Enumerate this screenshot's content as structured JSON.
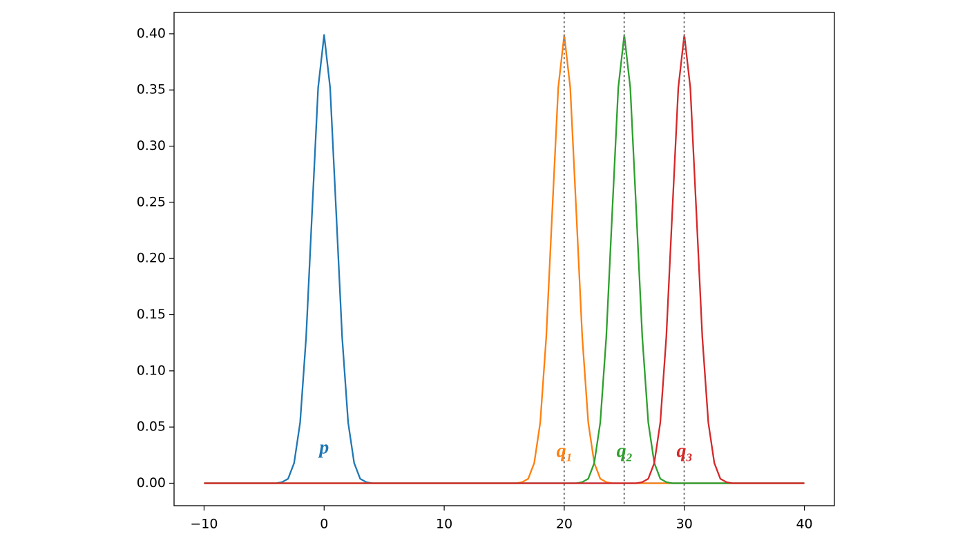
{
  "chart_data": {
    "type": "line",
    "x": [
      -10,
      -9.5,
      -9,
      -8.5,
      -8,
      -7.5,
      -7,
      -6.5,
      -6,
      -5.5,
      -5,
      -4.5,
      -4,
      -3.5,
      -3,
      -2.5,
      -2,
      -1.5,
      -1,
      -0.5,
      0,
      0.5,
      1,
      1.5,
      2,
      2.5,
      3,
      3.5,
      4,
      4.5,
      5,
      5.5,
      6,
      6.5,
      7,
      7.5,
      8,
      8.5,
      9,
      9.5,
      10,
      10.5,
      11,
      11.5,
      12,
      12.5,
      13,
      13.5,
      14,
      14.5,
      15,
      15.5,
      16,
      16.5,
      17,
      17.5,
      18,
      18.5,
      19,
      19.5,
      20,
      20.5,
      21,
      21.5,
      22,
      22.5,
      23,
      23.5,
      24,
      24.5,
      25,
      25.5,
      26,
      26.5,
      27,
      27.5,
      28,
      28.5,
      29,
      29.5,
      30,
      30.5,
      31,
      31.5,
      32,
      32.5,
      33,
      33.5,
      34,
      34.5,
      35,
      35.5,
      36,
      36.5,
      37,
      37.5,
      38,
      38.5,
      39,
      39.5,
      40
    ],
    "series": [
      {
        "color": "#1f77b4",
        "values": [
          0,
          0,
          0,
          0,
          0,
          0,
          0,
          0,
          0,
          0,
          0,
          0,
          0,
          0.001,
          0.004,
          0.018,
          0.054,
          0.13,
          0.242,
          0.352,
          0.399,
          0.352,
          0.242,
          0.13,
          0.054,
          0.018,
          0.004,
          0.001,
          0,
          0,
          0,
          0,
          0,
          0,
          0,
          0,
          0,
          0,
          0,
          0,
          0,
          0,
          0,
          0,
          0,
          0,
          0,
          0,
          0,
          0,
          0,
          0,
          0,
          0,
          0,
          0,
          0,
          0,
          0,
          0,
          0,
          0,
          0,
          0,
          0,
          0,
          0,
          0,
          0,
          0,
          0,
          0,
          0,
          0,
          0,
          0,
          0,
          0,
          0,
          0,
          0,
          0,
          0,
          0,
          0,
          0,
          0,
          0,
          0,
          0,
          0,
          0,
          0,
          0,
          0,
          0,
          0,
          0,
          0,
          0,
          0
        ]
      },
      {
        "color": "#ff7f0e",
        "values": [
          0,
          0,
          0,
          0,
          0,
          0,
          0,
          0,
          0,
          0,
          0,
          0,
          0,
          0,
          0,
          0,
          0,
          0,
          0,
          0,
          0,
          0,
          0,
          0,
          0,
          0,
          0,
          0,
          0,
          0,
          0,
          0,
          0,
          0,
          0,
          0,
          0,
          0,
          0,
          0,
          0,
          0,
          0,
          0,
          0,
          0,
          0,
          0,
          0,
          0,
          0,
          0,
          0,
          0.001,
          0.004,
          0.018,
          0.054,
          0.13,
          0.242,
          0.352,
          0.399,
          0.352,
          0.242,
          0.13,
          0.054,
          0.018,
          0.004,
          0.001,
          0,
          0,
          0,
          0,
          0,
          0,
          0,
          0,
          0,
          0,
          0,
          0,
          0,
          0,
          0,
          0,
          0,
          0,
          0,
          0,
          0,
          0,
          0,
          0,
          0,
          0,
          0,
          0,
          0,
          0,
          0,
          0,
          0
        ]
      },
      {
        "color": "#2ca02c",
        "values": [
          0,
          0,
          0,
          0,
          0,
          0,
          0,
          0,
          0,
          0,
          0,
          0,
          0,
          0,
          0,
          0,
          0,
          0,
          0,
          0,
          0,
          0,
          0,
          0,
          0,
          0,
          0,
          0,
          0,
          0,
          0,
          0,
          0,
          0,
          0,
          0,
          0,
          0,
          0,
          0,
          0,
          0,
          0,
          0,
          0,
          0,
          0,
          0,
          0,
          0,
          0,
          0,
          0,
          0,
          0,
          0,
          0,
          0,
          0,
          0,
          0,
          0,
          0,
          0.001,
          0.004,
          0.018,
          0.054,
          0.13,
          0.242,
          0.352,
          0.399,
          0.352,
          0.242,
          0.13,
          0.054,
          0.018,
          0.004,
          0.001,
          0,
          0,
          0,
          0,
          0,
          0,
          0,
          0,
          0,
          0,
          0,
          0,
          0,
          0,
          0,
          0,
          0,
          0,
          0,
          0,
          0,
          0,
          0
        ]
      },
      {
        "color": "#d62728",
        "values": [
          0,
          0,
          0,
          0,
          0,
          0,
          0,
          0,
          0,
          0,
          0,
          0,
          0,
          0,
          0,
          0,
          0,
          0,
          0,
          0,
          0,
          0,
          0,
          0,
          0,
          0,
          0,
          0,
          0,
          0,
          0,
          0,
          0,
          0,
          0,
          0,
          0,
          0,
          0,
          0,
          0,
          0,
          0,
          0,
          0,
          0,
          0,
          0,
          0,
          0,
          0,
          0,
          0,
          0,
          0,
          0,
          0,
          0,
          0,
          0,
          0,
          0,
          0,
          0,
          0,
          0,
          0,
          0,
          0,
          0,
          0,
          0,
          0,
          0.001,
          0.004,
          0.018,
          0.054,
          0.13,
          0.242,
          0.352,
          0.399,
          0.352,
          0.242,
          0.13,
          0.054,
          0.018,
          0.004,
          0.001,
          0,
          0,
          0,
          0,
          0,
          0,
          0,
          0,
          0,
          0,
          0,
          0,
          0
        ]
      }
    ],
    "vlines": [
      20,
      25,
      30
    ],
    "vline_color": "#808080",
    "annotations": [
      {
        "text": "p",
        "x": 0,
        "y": 0.03,
        "color": "#1f77b4"
      },
      {
        "text": "q",
        "sub": "1",
        "x": 20,
        "y": 0.027,
        "color": "#ff7f0e"
      },
      {
        "text": "q",
        "sub": "2",
        "x": 25,
        "y": 0.027,
        "color": "#2ca02c"
      },
      {
        "text": "q",
        "sub": "3",
        "x": 30,
        "y": 0.027,
        "color": "#d62728"
      }
    ],
    "xlim": [
      -12.5,
      42.5
    ],
    "ylim": [
      -0.02,
      0.419
    ],
    "xticks": [
      {
        "value": -10,
        "label": "−10"
      },
      0,
      10,
      20,
      30,
      40
    ],
    "yticks": [
      {
        "value": 0,
        "label": "0.00"
      },
      {
        "value": 0.05,
        "label": "0.05"
      },
      {
        "value": 0.1,
        "label": "0.10"
      },
      {
        "value": 0.15,
        "label": "0.15"
      },
      {
        "value": 0.2,
        "label": "0.20"
      },
      {
        "value": 0.25,
        "label": "0.25"
      },
      {
        "value": 0.3,
        "label": "0.30"
      },
      {
        "value": 0.35,
        "label": "0.35"
      },
      {
        "value": 0.4,
        "label": "0.40"
      }
    ],
    "grid": false
  }
}
